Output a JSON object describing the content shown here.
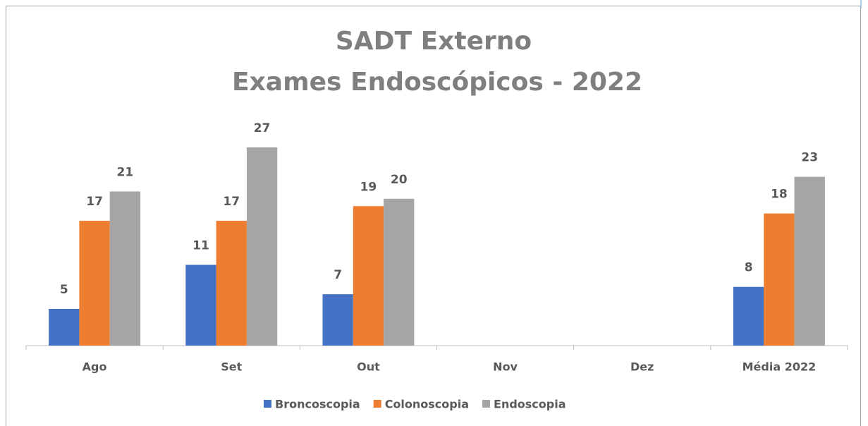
{
  "chart_data": {
    "type": "bar",
    "title": [
      "SADT Externo",
      "Exames Endoscópicos - 2022"
    ],
    "categories": [
      "Ago",
      "Set",
      "Out",
      "Nov",
      "Dez",
      "Média 2022"
    ],
    "series": [
      {
        "name": "Broncoscopia",
        "color": "#4472c4",
        "values": [
          5,
          11,
          7,
          null,
          null,
          8
        ]
      },
      {
        "name": "Colonoscopia",
        "color": "#ed7d31",
        "values": [
          17,
          17,
          19,
          null,
          null,
          18
        ]
      },
      {
        "name": "Endoscopia",
        "color": "#a5a5a5",
        "values": [
          21,
          27,
          20,
          null,
          null,
          23
        ]
      }
    ],
    "legend": "bottom"
  }
}
